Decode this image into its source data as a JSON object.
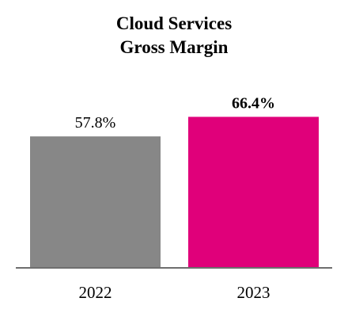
{
  "chart_data": {
    "type": "bar",
    "title": [
      "Cloud Services",
      "Gross Margin"
    ],
    "categories": [
      "2022",
      "2023"
    ],
    "values": [
      57.8,
      66.4
    ],
    "value_labels": [
      "57.8%",
      "66.4%"
    ],
    "value_label_bold": [
      false,
      true
    ],
    "colors": [
      "#878787",
      "#e0007a"
    ],
    "xlabel": "",
    "ylabel": "",
    "ylim": [
      0,
      100
    ],
    "grid": false,
    "legend": "none"
  }
}
